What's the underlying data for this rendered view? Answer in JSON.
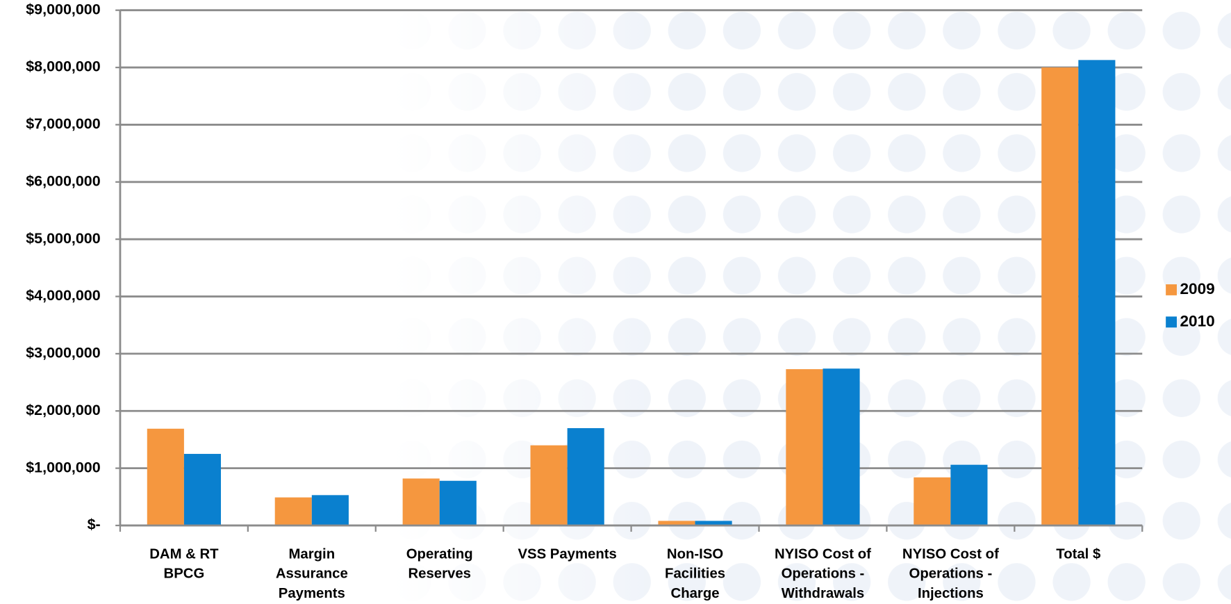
{
  "chart_data": {
    "type": "bar",
    "categories": [
      "DAM & RT\nBPCG",
      "Margin\nAssurance\nPayments",
      "Operating\nReserves",
      "VSS Payments",
      "Non-ISO\nFacilities\nCharge",
      "NYISO Cost of\nOperations -\nWithdrawals",
      "NYISO Cost of\nOperations -\nInjections",
      "Total $"
    ],
    "series": [
      {
        "name": "2009",
        "color": "#f5973f",
        "values": [
          1690000,
          490000,
          820000,
          1400000,
          80000,
          2730000,
          840000,
          8000000
        ]
      },
      {
        "name": "2010",
        "color": "#0a80cf",
        "values": [
          1250000,
          530000,
          780000,
          1700000,
          80000,
          2740000,
          1060000,
          8130000
        ]
      }
    ],
    "ylim": [
      0,
      9000000
    ],
    "yticks": [
      {
        "value": 0,
        "label": "$-"
      },
      {
        "value": 1000000,
        "label": "$1,000,000"
      },
      {
        "value": 2000000,
        "label": "$2,000,000"
      },
      {
        "value": 3000000,
        "label": "$3,000,000"
      },
      {
        "value": 4000000,
        "label": "$4,000,000"
      },
      {
        "value": 5000000,
        "label": "$5,000,000"
      },
      {
        "value": 6000000,
        "label": "$6,000,000"
      },
      {
        "value": 7000000,
        "label": "$7,000,000"
      },
      {
        "value": 8000000,
        "label": "$8,000,000"
      },
      {
        "value": 9000000,
        "label": "$9,000,000"
      }
    ],
    "grid": true,
    "legend": "right"
  }
}
